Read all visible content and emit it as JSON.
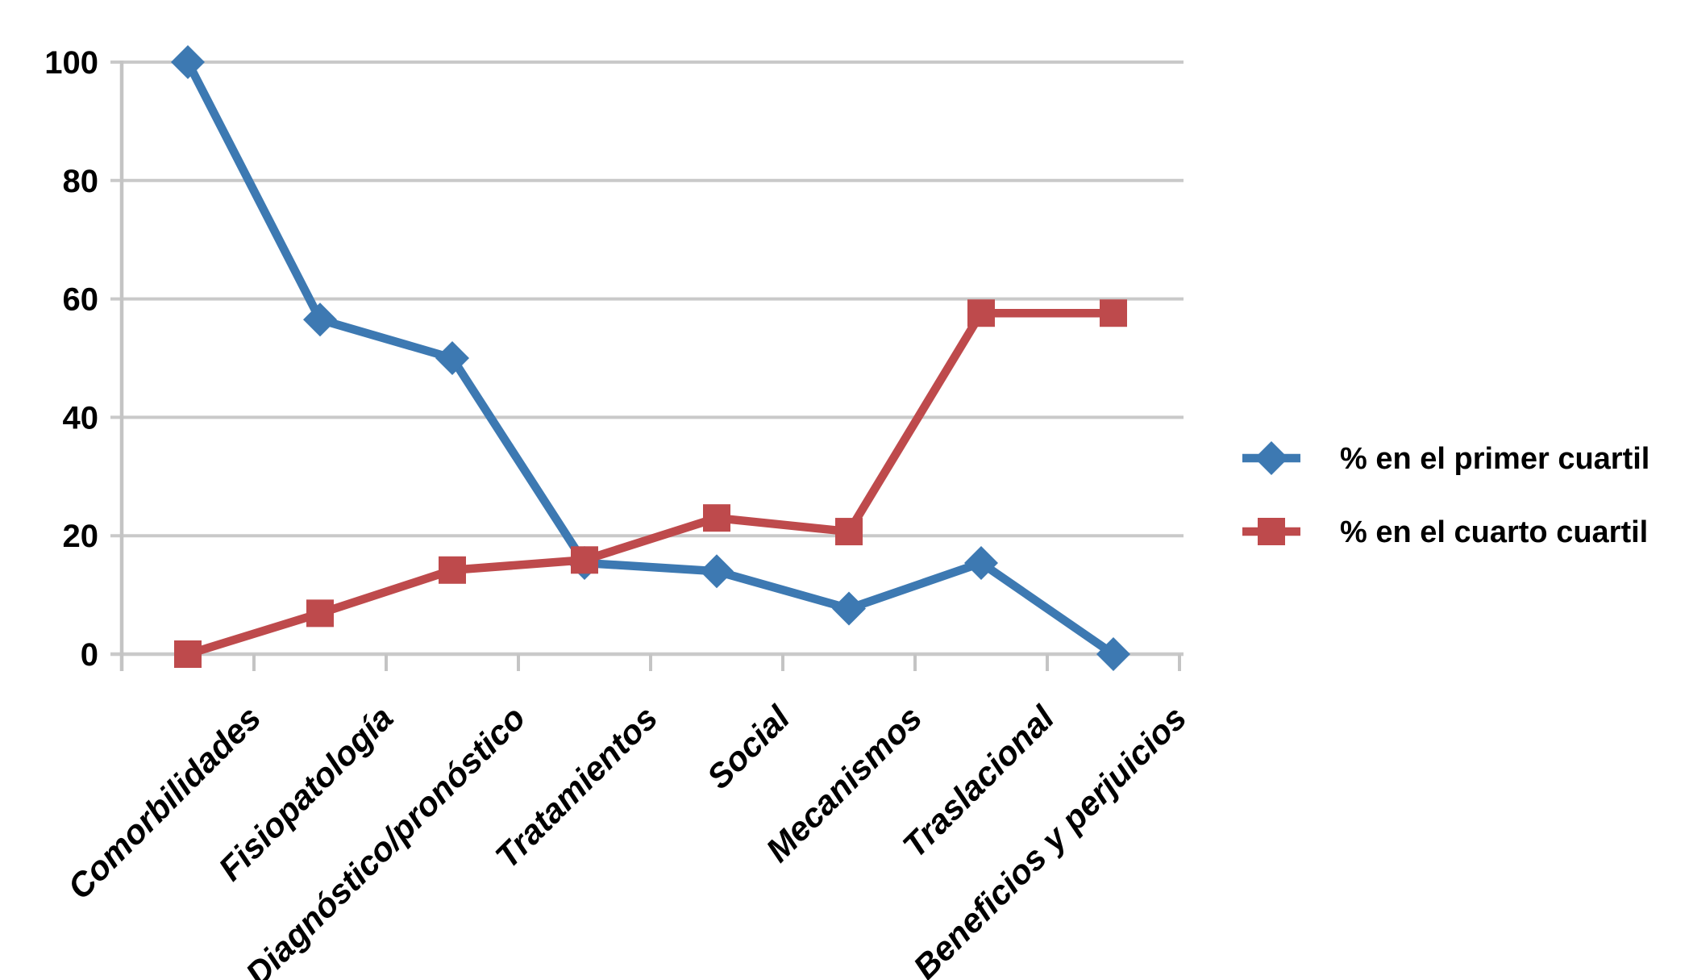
{
  "chart_data": {
    "type": "line",
    "title": "",
    "xlabel": "",
    "ylabel": "",
    "categories": [
      "Comorbilidades",
      "Fisiopatología",
      "Diagnóstico/pronóstico",
      "Tratamientos",
      "Social",
      "Mecanismos",
      "Traslacional",
      "Beneficios y perjuicios"
    ],
    "series": [
      {
        "name": "% en el primer cuartil",
        "marker": "diamond",
        "color": "#3D79B2",
        "values": [
          100,
          56.5,
          50,
          15.4,
          14,
          7.7,
          15.4,
          0
        ]
      },
      {
        "name": "% en el cuarto cuartil",
        "marker": "square",
        "color": "#BE4A4C",
        "values": [
          0,
          6.9,
          14.2,
          15.9,
          23,
          20.7,
          57.6,
          57.6
        ]
      }
    ],
    "ylim": [
      0,
      100
    ],
    "yticks": [
      0,
      20,
      40,
      60,
      80,
      100
    ],
    "grid": "horizontal",
    "legend_position": "right",
    "colors": {
      "gridline": "#C9C9C9",
      "axis": "#C4C4C4",
      "text": "#000000",
      "background": "#FFFFFF"
    }
  }
}
